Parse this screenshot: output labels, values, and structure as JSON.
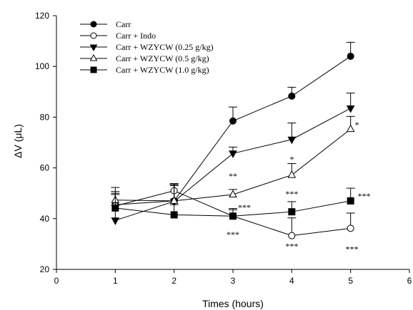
{
  "chart_data": {
    "type": "line",
    "title": "",
    "xlabel": "Times (hours)",
    "ylabel": "ΔV (μL)",
    "xlim": [
      0,
      6
    ],
    "ylim": [
      20,
      120
    ],
    "xticks": [
      "0",
      "1",
      "2",
      "3",
      "4",
      "5",
      "6"
    ],
    "yticks": [
      "20",
      "40",
      "60",
      "80",
      "100",
      "120"
    ],
    "grid": false,
    "legend_position": "top-left",
    "x": [
      1,
      2,
      3,
      4,
      5
    ],
    "series": [
      {
        "name": "Carr",
        "marker": "filled-circle",
        "values": [
          45.5,
          47,
          78.5,
          88.3,
          104
        ],
        "error": [
          4,
          6,
          5.5,
          3.5,
          5.5
        ],
        "significance": [
          "",
          "",
          "",
          "",
          ""
        ]
      },
      {
        "name": "Carr + Indo",
        "marker": "open-circle",
        "values": [
          45,
          51,
          41,
          33.3,
          36.2
        ],
        "error": [
          5,
          2.5,
          2.5,
          7,
          6
        ],
        "significance": [
          "",
          "",
          "***",
          "***",
          "***"
        ]
      },
      {
        "name": "Carr + WZYCW (0.25 g/kg)",
        "marker": "filled-triangle-down",
        "values": [
          39.3,
          46.8,
          65.7,
          71.2,
          83.5
        ],
        "error": [
          6,
          7,
          2.5,
          6.5,
          6
        ],
        "significance": [
          "",
          "",
          "",
          "",
          ""
        ]
      },
      {
        "name": "Carr + WZYCW (0.5 g/kg)",
        "marker": "open-triangle-up",
        "values": [
          47.3,
          47,
          49.5,
          57.2,
          75.3
        ],
        "error": [
          5,
          6.5,
          2,
          4.5,
          5
        ],
        "significance": [
          "",
          "",
          "**",
          "*",
          "*"
        ]
      },
      {
        "name": "Carr + WZYCW (1.0 g/kg)",
        "marker": "filled-square",
        "values": [
          44.2,
          41.5,
          41,
          42.7,
          47
        ],
        "error": [
          6.5,
          4,
          3,
          4,
          5
        ],
        "significance": [
          "",
          "",
          "***",
          "***",
          "***"
        ]
      }
    ]
  }
}
